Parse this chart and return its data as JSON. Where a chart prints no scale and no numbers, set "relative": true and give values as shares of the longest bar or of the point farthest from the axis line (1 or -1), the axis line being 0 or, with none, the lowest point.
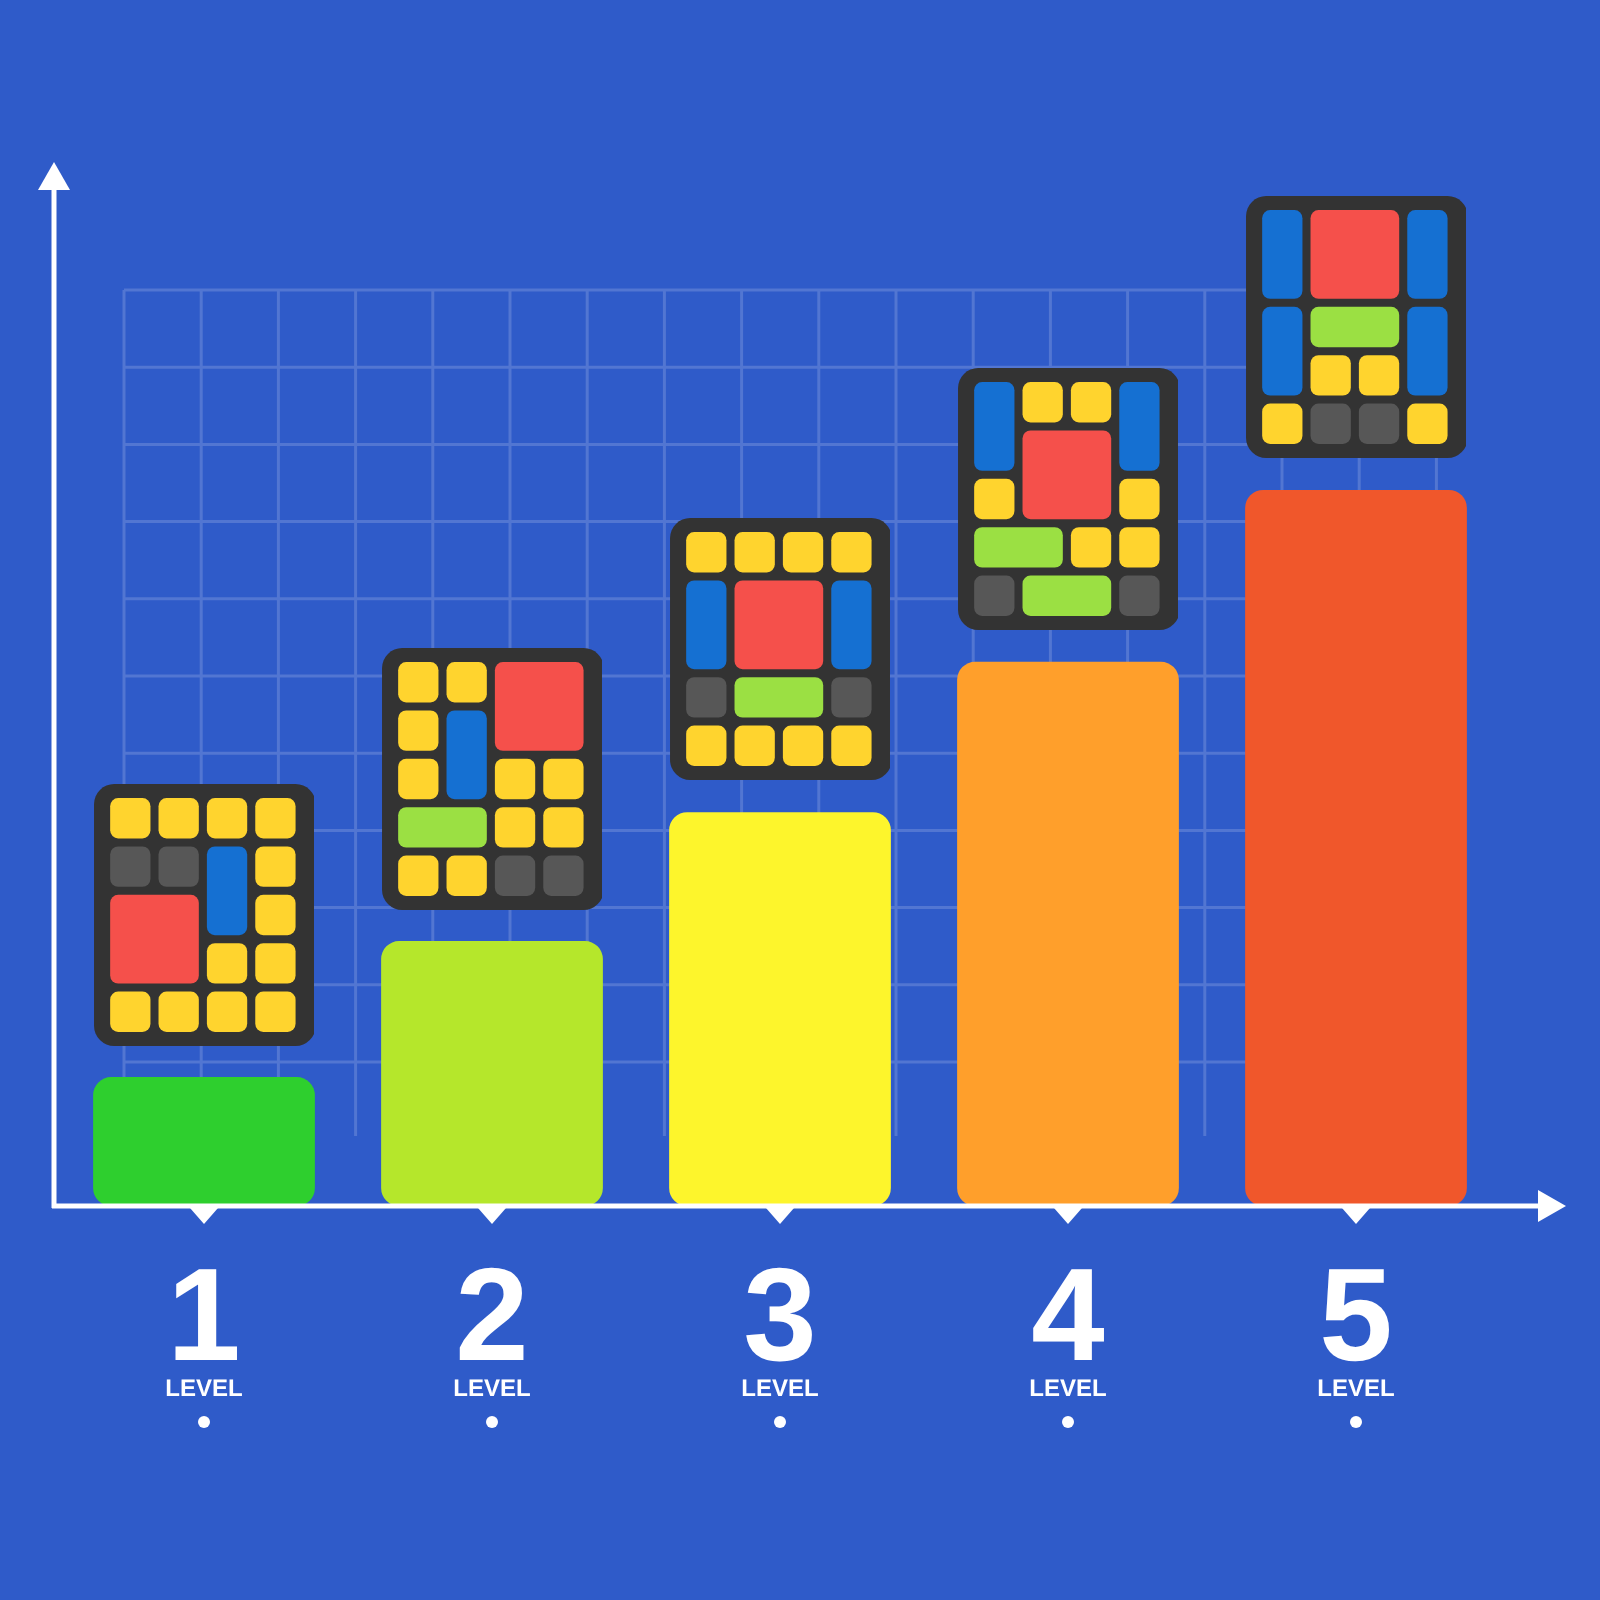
{
  "chart_data": {
    "type": "bar",
    "categories": [
      "1",
      "2",
      "3",
      "4",
      "5"
    ],
    "values": [
      0.18,
      0.37,
      0.55,
      0.76,
      1
    ],
    "colors": [
      "#2ecf2e",
      "#b5e72b",
      "#fdf52c",
      "#ff9f2b",
      "#f0572b"
    ],
    "annotations": [
      "LEVEL",
      "LEVEL",
      "LEVEL",
      "LEVEL",
      "LEVEL"
    ],
    "relative": true,
    "grid": true,
    "legend": false
  }
}
